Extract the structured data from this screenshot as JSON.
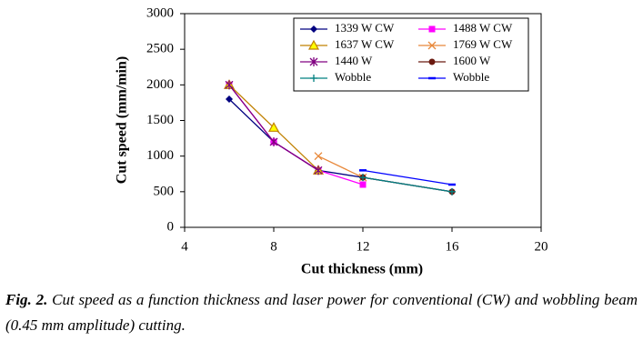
{
  "chart_data": {
    "type": "line",
    "x_label": "Cut  thickness (mm)",
    "y_label": "Cut speed (mm/min)",
    "x": [
      6,
      8,
      10,
      12,
      16
    ],
    "xlim": [
      4,
      20
    ],
    "xticks": [
      4,
      8,
      12,
      16,
      20
    ],
    "ylim": [
      0,
      3000
    ],
    "yticks": [
      0,
      500,
      1000,
      1500,
      2000,
      2500,
      3000
    ],
    "series": [
      {
        "name": "1339 W CW",
        "color": "#000080",
        "marker": "diamond",
        "values": [
          1800,
          1200,
          800,
          700,
          500
        ]
      },
      {
        "name": "1488 W CW",
        "color": "#ff00ff",
        "marker": "square",
        "values": [
          2000,
          1200,
          800,
          600,
          null
        ]
      },
      {
        "name": "1637 W CW",
        "color": "#c08000",
        "marker": "triangle",
        "values": [
          2000,
          1400,
          800,
          null,
          null
        ]
      },
      {
        "name": "1769 W CW",
        "color": "#e8883a",
        "marker": "x",
        "values": [
          null,
          null,
          1000,
          700,
          null
        ]
      },
      {
        "name": "1440 W",
        "color": "#800080",
        "marker": "asterisk",
        "values": [
          2000,
          1200,
          800,
          null,
          null
        ]
      },
      {
        "name": "1600 W",
        "color": "#6b1a10",
        "marker": "circle",
        "values": [
          null,
          null,
          null,
          700,
          500
        ]
      },
      {
        "name": "Wobble",
        "color": "#008080",
        "marker": "plus",
        "values": [
          null,
          null,
          null,
          700,
          500
        ]
      },
      {
        "name": "Wobble",
        "color": "#0000ff",
        "marker": "dash",
        "values": [
          null,
          null,
          null,
          800,
          600
        ]
      }
    ]
  },
  "caption": {
    "label": "Fig. 2.",
    "text": "Cut speed as a function thickness and laser power for conventional (CW) and wobbling beam (0.45 mm amplitude) cutting."
  }
}
